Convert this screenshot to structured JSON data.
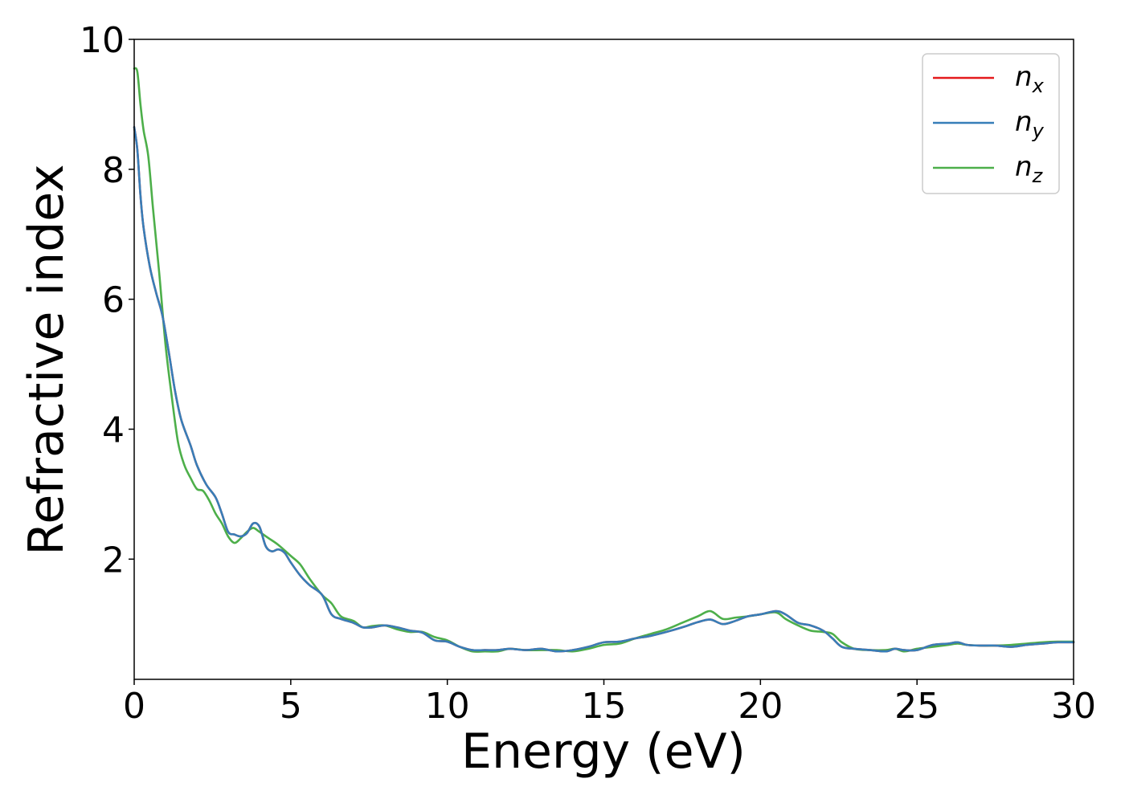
{
  "chart_data": {
    "type": "line",
    "title": "",
    "xlabel": "Energy (eV)",
    "ylabel": "Refractive index",
    "xlim": [
      0,
      30
    ],
    "ylim": [
      0.15,
      10.0
    ],
    "xticks": [
      0,
      5,
      10,
      15,
      20,
      25,
      30
    ],
    "yticks": [
      2,
      4,
      6,
      8,
      10
    ],
    "grid": false,
    "legend_position": "top-right",
    "series": [
      {
        "name": "n_x",
        "legend_base": "n",
        "legend_sub": "x",
        "color": "#e41a1c",
        "x": [
          0,
          0.1,
          0.2,
          0.3,
          0.5,
          0.7,
          0.9,
          1.1,
          1.3,
          1.5,
          1.8,
          2.0,
          2.3,
          2.6,
          2.8,
          3.0,
          3.2,
          3.4,
          3.6,
          3.8,
          4.0,
          4.2,
          4.4,
          4.6,
          4.8,
          5.0,
          5.3,
          5.6,
          6.0,
          6.3,
          6.6,
          7.0,
          7.3,
          7.6,
          8.0,
          8.4,
          8.8,
          9.2,
          9.6,
          10.0,
          10.4,
          10.8,
          11.2,
          11.6,
          12.0,
          12.5,
          13.0,
          13.5,
          14.0,
          14.5,
          15.0,
          15.5,
          16.0,
          16.5,
          17.0,
          17.5,
          18.0,
          18.4,
          18.8,
          19.2,
          19.6,
          20.0,
          20.5,
          20.8,
          21.2,
          21.6,
          22.0,
          22.3,
          22.6,
          23.0,
          23.5,
          24.0,
          24.3,
          24.6,
          25.0,
          25.5,
          26.0,
          26.3,
          26.6,
          27.0,
          27.5,
          28.0,
          28.5,
          29.0,
          29.5,
          30.0
        ],
        "values": [
          8.65,
          8.3,
          7.6,
          7.1,
          6.5,
          6.1,
          5.75,
          5.2,
          4.6,
          4.15,
          3.75,
          3.45,
          3.15,
          2.95,
          2.7,
          2.42,
          2.38,
          2.35,
          2.4,
          2.55,
          2.5,
          2.2,
          2.12,
          2.15,
          2.1,
          1.95,
          1.75,
          1.6,
          1.45,
          1.15,
          1.08,
          1.02,
          0.95,
          0.95,
          0.98,
          0.95,
          0.9,
          0.87,
          0.75,
          0.73,
          0.65,
          0.6,
          0.6,
          0.6,
          0.62,
          0.6,
          0.62,
          0.58,
          0.6,
          0.65,
          0.72,
          0.73,
          0.78,
          0.82,
          0.88,
          0.95,
          1.03,
          1.07,
          1.0,
          1.05,
          1.12,
          1.15,
          1.2,
          1.15,
          1.02,
          0.98,
          0.9,
          0.78,
          0.65,
          0.62,
          0.6,
          0.58,
          0.62,
          0.6,
          0.6,
          0.68,
          0.7,
          0.72,
          0.68,
          0.67,
          0.67,
          0.65,
          0.68,
          0.7,
          0.72,
          0.72
        ]
      },
      {
        "name": "n_y",
        "legend_base": "n",
        "legend_sub": "y",
        "color": "#377eb8",
        "x": [
          0,
          0.1,
          0.2,
          0.3,
          0.5,
          0.7,
          0.9,
          1.1,
          1.3,
          1.5,
          1.8,
          2.0,
          2.3,
          2.6,
          2.8,
          3.0,
          3.2,
          3.4,
          3.6,
          3.8,
          4.0,
          4.2,
          4.4,
          4.6,
          4.8,
          5.0,
          5.3,
          5.6,
          6.0,
          6.3,
          6.6,
          7.0,
          7.3,
          7.6,
          8.0,
          8.4,
          8.8,
          9.2,
          9.6,
          10.0,
          10.4,
          10.8,
          11.2,
          11.6,
          12.0,
          12.5,
          13.0,
          13.5,
          14.0,
          14.5,
          15.0,
          15.5,
          16.0,
          16.5,
          17.0,
          17.5,
          18.0,
          18.4,
          18.8,
          19.2,
          19.6,
          20.0,
          20.5,
          20.8,
          21.2,
          21.6,
          22.0,
          22.3,
          22.6,
          23.0,
          23.5,
          24.0,
          24.3,
          24.6,
          25.0,
          25.5,
          26.0,
          26.3,
          26.6,
          27.0,
          27.5,
          28.0,
          28.5,
          29.0,
          29.5,
          30.0
        ],
        "values": [
          8.65,
          8.3,
          7.6,
          7.1,
          6.5,
          6.1,
          5.75,
          5.2,
          4.6,
          4.15,
          3.75,
          3.45,
          3.15,
          2.95,
          2.7,
          2.42,
          2.38,
          2.35,
          2.4,
          2.55,
          2.5,
          2.2,
          2.12,
          2.15,
          2.1,
          1.95,
          1.75,
          1.6,
          1.45,
          1.15,
          1.08,
          1.02,
          0.95,
          0.95,
          0.98,
          0.95,
          0.9,
          0.87,
          0.75,
          0.73,
          0.65,
          0.6,
          0.6,
          0.6,
          0.62,
          0.6,
          0.62,
          0.58,
          0.6,
          0.65,
          0.72,
          0.73,
          0.78,
          0.82,
          0.88,
          0.95,
          1.03,
          1.07,
          1.0,
          1.05,
          1.12,
          1.15,
          1.2,
          1.15,
          1.02,
          0.98,
          0.9,
          0.78,
          0.65,
          0.62,
          0.6,
          0.58,
          0.62,
          0.6,
          0.6,
          0.68,
          0.7,
          0.72,
          0.68,
          0.67,
          0.67,
          0.65,
          0.68,
          0.7,
          0.72,
          0.72
        ]
      },
      {
        "name": "n_z",
        "legend_base": "n",
        "legend_sub": "z",
        "color": "#4daf4a",
        "x": [
          0,
          0.1,
          0.2,
          0.3,
          0.45,
          0.6,
          0.8,
          1.0,
          1.2,
          1.4,
          1.6,
          1.8,
          2.0,
          2.2,
          2.4,
          2.6,
          2.8,
          3.0,
          3.2,
          3.4,
          3.6,
          3.8,
          4.0,
          4.3,
          4.6,
          5.0,
          5.3,
          5.6,
          6.0,
          6.3,
          6.6,
          7.0,
          7.3,
          7.6,
          8.0,
          8.4,
          8.8,
          9.2,
          9.6,
          10.0,
          10.4,
          10.8,
          11.2,
          11.6,
          12.0,
          12.5,
          13.0,
          13.5,
          14.0,
          14.5,
          15.0,
          15.5,
          16.0,
          16.5,
          17.0,
          17.5,
          18.0,
          18.4,
          18.8,
          19.2,
          19.6,
          20.0,
          20.5,
          20.8,
          21.2,
          21.6,
          22.0,
          22.3,
          22.6,
          23.0,
          23.5,
          24.0,
          24.3,
          24.6,
          25.0,
          25.5,
          26.0,
          26.3,
          26.6,
          27.0,
          27.5,
          28.0,
          28.5,
          29.0,
          29.5,
          30.0
        ],
        "values": [
          9.55,
          9.5,
          9.0,
          8.6,
          8.2,
          7.4,
          6.4,
          5.3,
          4.5,
          3.8,
          3.45,
          3.25,
          3.08,
          3.05,
          2.9,
          2.7,
          2.55,
          2.35,
          2.25,
          2.32,
          2.42,
          2.48,
          2.42,
          2.32,
          2.22,
          2.05,
          1.92,
          1.7,
          1.45,
          1.32,
          1.12,
          1.05,
          0.95,
          0.97,
          0.98,
          0.92,
          0.88,
          0.88,
          0.8,
          0.75,
          0.65,
          0.58,
          0.58,
          0.58,
          0.62,
          0.6,
          0.6,
          0.6,
          0.58,
          0.62,
          0.68,
          0.7,
          0.78,
          0.85,
          0.92,
          1.02,
          1.12,
          1.2,
          1.08,
          1.1,
          1.12,
          1.15,
          1.18,
          1.08,
          0.98,
          0.9,
          0.88,
          0.85,
          0.72,
          0.62,
          0.6,
          0.6,
          0.62,
          0.58,
          0.62,
          0.65,
          0.68,
          0.7,
          0.68,
          0.67,
          0.67,
          0.68,
          0.7,
          0.72,
          0.73,
          0.73
        ]
      }
    ]
  }
}
